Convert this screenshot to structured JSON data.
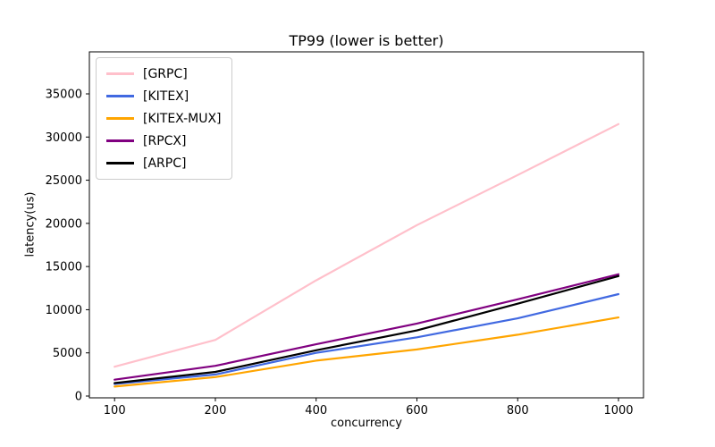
{
  "chart_data": {
    "type": "line",
    "title": "TP99 (lower is better)",
    "xlabel": "concurrency",
    "ylabel": "latency(us)",
    "categories": [
      "100",
      "200",
      "400",
      "600",
      "800",
      "1000"
    ],
    "y_ticks": [
      0,
      5000,
      10000,
      15000,
      20000,
      25000,
      30000,
      35000
    ],
    "ylim": [
      -250,
      39800
    ],
    "grid": false,
    "legend_position": "upper left",
    "series": [
      {
        "name": "[GRPC]",
        "color": "#FFC0CB",
        "values": [
          3400,
          6500,
          13400,
          19800,
          25600,
          31500
        ]
      },
      {
        "name": "[KITEX]",
        "color": "#4169E1",
        "values": [
          1400,
          2500,
          5000,
          6800,
          9000,
          11800
        ]
      },
      {
        "name": "[KITEX-MUX]",
        "color": "#FFA500",
        "values": [
          1100,
          2200,
          4100,
          5400,
          7100,
          9100
        ]
      },
      {
        "name": "[RPCX]",
        "color": "#800080",
        "values": [
          1900,
          3500,
          6000,
          8400,
          11200,
          14100
        ]
      },
      {
        "name": "[ARPC]",
        "color": "#000000",
        "values": [
          1500,
          2800,
          5300,
          7600,
          10700,
          13900
        ]
      }
    ]
  }
}
